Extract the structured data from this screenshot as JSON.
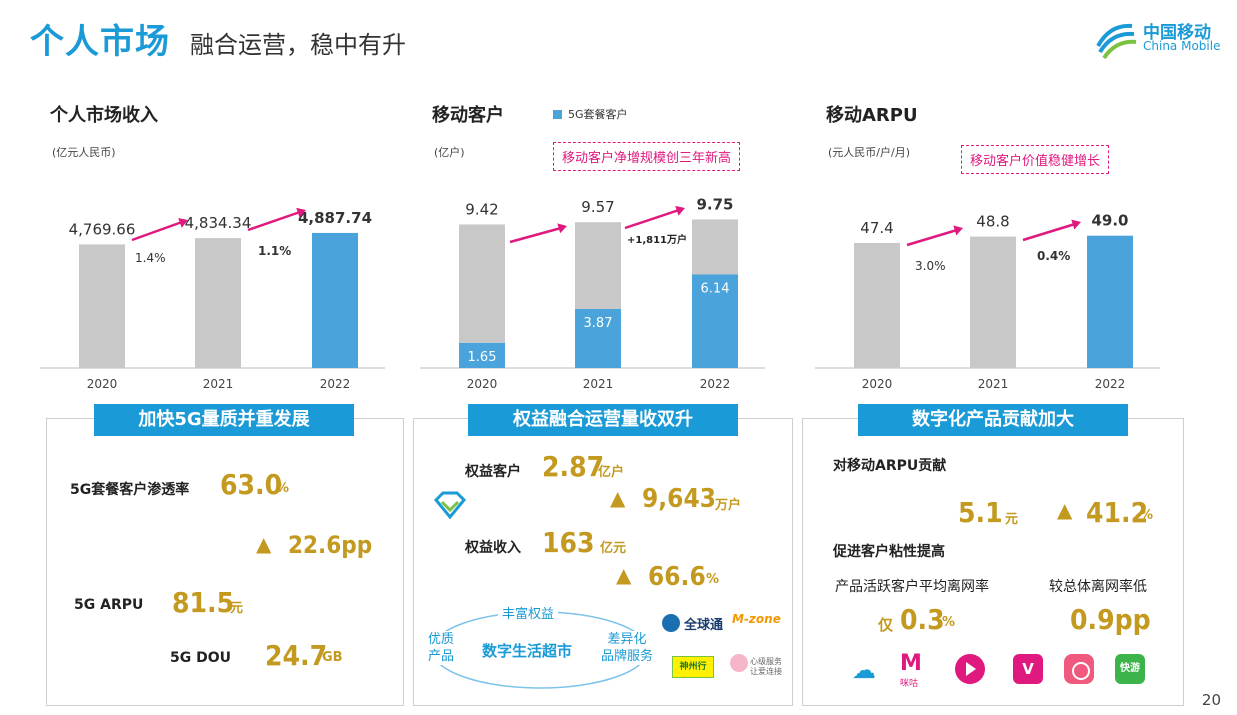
{
  "header": {
    "title": "个人市场",
    "subtitle": "融合运营，稳中有升",
    "logo_cn": "中国移动",
    "logo_en": "China Mobile",
    "brand_color": "#1a9ad6"
  },
  "page_number": "20",
  "chart_data": [
    {
      "type": "bar",
      "title": "个人市场收入",
      "unit": "(亿元人民币)",
      "categories": [
        "2020",
        "2021",
        "2022"
      ],
      "values": [
        4769.66,
        4834.34,
        4887.74
      ],
      "value_labels": [
        "4,769.66",
        "4,834.34",
        "4,887.74"
      ],
      "growth_labels": [
        "1.4%",
        "1.1%"
      ],
      "ylim": [
        0,
        5000
      ],
      "colors": {
        "past": "#c8c8c8",
        "current": "#4aa3db"
      }
    },
    {
      "type": "bar",
      "title": "移动客户",
      "unit": "(亿户)",
      "legend": "5G套餐客户",
      "callout": "移动客户净增规模创三年新高",
      "categories": [
        "2020",
        "2021",
        "2022"
      ],
      "series": [
        {
          "name": "5G套餐客户",
          "values": [
            1.65,
            3.87,
            6.14
          ]
        },
        {
          "values": [
            9.42,
            9.57,
            9.75
          ]
        }
      ],
      "value_labels": [
        "9.42",
        "9.57",
        "9.75"
      ],
      "inner_labels": [
        "1.65",
        "3.87",
        "6.14"
      ],
      "growth_note": "+1,811万户",
      "ylim": [
        0,
        10.5
      ],
      "colors": {
        "total": "#c8c8c8",
        "fiveg": "#4aa3db"
      }
    },
    {
      "type": "bar",
      "title": "移动ARPU",
      "unit": "(元人民币/户/月)",
      "callout": "移动客户价值稳健增长",
      "categories": [
        "2020",
        "2021",
        "2022"
      ],
      "values": [
        47.4,
        48.8,
        49.0
      ],
      "value_labels": [
        "47.4",
        "48.8",
        "49.0"
      ],
      "growth_labels": [
        "3.0%",
        "0.4%"
      ],
      "ylim": [
        0,
        52
      ],
      "colors": {
        "past": "#c8c8c8",
        "current": "#4aa3db"
      }
    }
  ],
  "panel1": {
    "banner": "加快5G量质并重发展",
    "penetration_label": "5G套餐客户渗透率",
    "penetration_value": "63.0",
    "penetration_unit": "%",
    "penetration_delta": "22.6pp",
    "arpu_label": "5G ARPU",
    "arpu_value": "81.5",
    "arpu_unit": "元",
    "dou_label": "5G DOU",
    "dou_value": "24.7",
    "dou_unit": "GB"
  },
  "panel2": {
    "banner": "权益融合运营量收双升",
    "customers_label": "权益客户",
    "customers_value": "2.87",
    "customers_unit": "亿户",
    "customers_delta": "9,643",
    "customers_delta_unit": "万户",
    "revenue_label": "权益收入",
    "revenue_value": "163",
    "revenue_unit": "亿元",
    "revenue_delta": "66.6",
    "revenue_delta_unit": "%",
    "arc_top": "丰富权益",
    "arc_left": "优质\n产品",
    "arc_center": "数字生活超市",
    "arc_right": "差异化\n品牌服务",
    "brand1": "全球通",
    "brand2": "M-zone",
    "brand3": "神州行",
    "brand4": "心级服务 让爱连接"
  },
  "panel3": {
    "banner": "数字化产品贡献加大",
    "contrib_label": "对移动ARPU贡献",
    "contrib_value": "5.1",
    "contrib_unit": "元",
    "contrib_delta": "41.2",
    "contrib_delta_unit": "%",
    "stickiness_label": "促进客户粘性提高",
    "churn_label": "产品活跃客户平均离网率",
    "churn_prefix": "仅",
    "churn_value": "0.3",
    "churn_unit": "%",
    "lower_label": "较总体离网率低",
    "lower_value": "0.9pp",
    "app_icons": [
      "cloud-icon",
      "migu-icon",
      "video-ring-icon",
      "vr-icon",
      "music-icon",
      "game-icon"
    ],
    "icon_labels": [
      "咪咕",
      "快游"
    ]
  }
}
